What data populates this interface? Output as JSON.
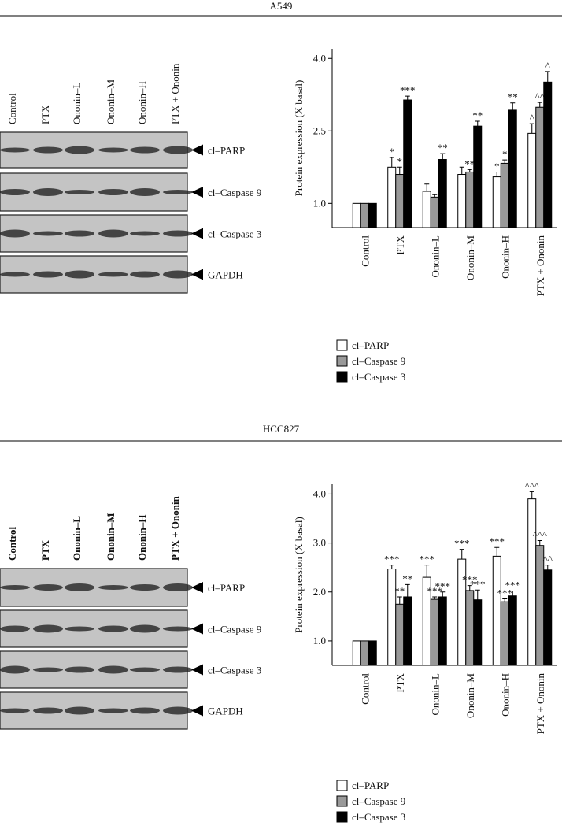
{
  "figures": [
    {
      "title": "A549",
      "blot": {
        "lanes": [
          "Control",
          "PTX",
          "Ononin–L",
          "Ononin–M",
          "Ononin–H",
          "PTX + Ononin"
        ],
        "bands": [
          "cl–PARP",
          "cl–Caspase 9",
          "cl–Caspase 3",
          "GAPDH"
        ]
      }
    },
    {
      "title": "HCC827",
      "blot": {
        "lanes": [
          "Control",
          "PTX",
          "Ononin–L",
          "Ononin–M",
          "Ononin–H",
          "PTX + Ononin"
        ],
        "bands": [
          "cl–PARP",
          "cl–Caspase 9",
          "cl–Caspase 3",
          "GAPDH"
        ]
      }
    }
  ],
  "chart_data": [
    {
      "type": "bar",
      "y_label": "Protein expression (X basal)",
      "categories": [
        "Control",
        "PTX",
        "Ononin–L",
        "Ononin–M",
        "Ononin–H",
        "PTX + Ononin"
      ],
      "series": [
        {
          "name": "cl–PARP",
          "color": "#ffffff",
          "values": [
            1,
            1.75,
            1.25,
            1.6,
            1.55,
            2.45
          ],
          "errors": [
            0,
            0.2,
            0.15,
            0.15,
            0.1,
            0.2
          ],
          "significance": [
            null,
            "*",
            null,
            null,
            "*",
            "^"
          ]
        },
        {
          "name": "cl–Caspase 9",
          "color": "#999999",
          "values": [
            1,
            1.6,
            1.13,
            1.65,
            1.83,
            2.99
          ],
          "errors": [
            0,
            0.15,
            0.05,
            0.05,
            0.07,
            0.1
          ],
          "significance": [
            null,
            "*",
            null,
            "**",
            "*",
            "^^"
          ]
        },
        {
          "name": "cl–Caspase 3",
          "color": "#000000",
          "values": [
            1,
            3.14,
            1.91,
            2.6,
            2.93,
            3.51
          ],
          "errors": [
            0,
            0.08,
            0.12,
            0.1,
            0.15,
            0.22
          ],
          "significance": [
            null,
            "***",
            "**",
            "**",
            "**",
            "^"
          ]
        }
      ],
      "ylim": [
        0.5,
        4.2
      ],
      "yticks": [
        {
          "value": 1,
          "label": "1.0"
        },
        {
          "value": 2.5,
          "label": "2.5"
        },
        {
          "value": 4,
          "label": "4.0"
        }
      ],
      "legend": "below"
    },
    {
      "type": "bar",
      "y_label": "Protein expression (X basal)",
      "categories": [
        "Control",
        "PTX",
        "Ononin–L",
        "Ononin–M",
        "Ononin–H",
        "PTX + Ononin"
      ],
      "series": [
        {
          "name": "cl–PARP",
          "color": "#ffffff",
          "values": [
            1,
            2.47,
            2.3,
            2.67,
            2.73,
            3.9
          ],
          "errors": [
            0,
            0.08,
            0.25,
            0.2,
            0.18,
            0.15
          ],
          "significance": [
            null,
            "***",
            "***",
            "***",
            "***",
            "^^^"
          ]
        },
        {
          "name": "cl–Caspase 9",
          "color": "#999999",
          "values": [
            1,
            1.75,
            1.85,
            2.03,
            1.8,
            2.95
          ],
          "errors": [
            0,
            0.15,
            0.05,
            0.1,
            0.06,
            0.1
          ],
          "significance": [
            null,
            "**",
            "***",
            "***",
            "***",
            "^^^"
          ]
        },
        {
          "name": "cl–Caspase 3",
          "color": "#000000",
          "values": [
            1,
            1.9,
            1.9,
            1.84,
            1.92,
            2.45
          ],
          "errors": [
            0,
            0.25,
            0.1,
            0.2,
            0.1,
            0.1
          ],
          "significance": [
            null,
            "**",
            "***",
            "***",
            "***",
            "^^"
          ]
        }
      ],
      "ylim": [
        0.5,
        4.2
      ],
      "yticks": [
        {
          "value": 1,
          "label": "1.0"
        },
        {
          "value": 2,
          "label": "2.0"
        },
        {
          "value": 3,
          "label": "3.0"
        },
        {
          "value": 4,
          "label": "4.0"
        }
      ],
      "legend": "below"
    }
  ]
}
